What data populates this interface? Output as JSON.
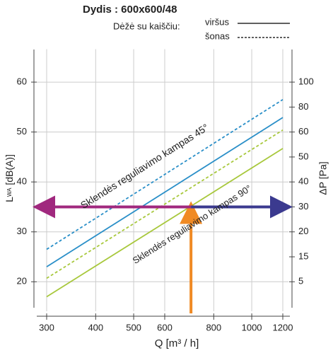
{
  "chart_data": {
    "type": "line",
    "title": "Dydis : 600x600/48",
    "subtitle": "Dėžė su kaiščiu:",
    "legend": [
      {
        "name": "viršus",
        "dashed": false
      },
      {
        "name": "šonas",
        "dashed": true
      }
    ],
    "xlabel": "Q [m³ / h]",
    "ylabel": "L",
    "ylabel_sub": "WA",
    "ylabel_rest": " [dB(A)]",
    "y2label": "ΔP [Pa]",
    "xscale": "log",
    "xlim": [
      300,
      1200
    ],
    "xticks": [
      300,
      400,
      500,
      600,
      800,
      1000,
      1200
    ],
    "ylim": [
      14.8,
      66.6
    ],
    "yticks": [
      20,
      30,
      40,
      50,
      60
    ],
    "y2scale": "point",
    "y2ticks": [
      5,
      15,
      20,
      30,
      40,
      50,
      60,
      80,
      100
    ],
    "grid": true,
    "x": [
      300,
      1200
    ],
    "series": [
      {
        "color": "#2a8fc8",
        "dashed": true,
        "values": [
          26.5,
          56.5
        ]
      },
      {
        "color": "#2a8fc8",
        "dashed": false,
        "values": [
          23.0,
          52.9
        ]
      },
      {
        "color": "#a8c83c",
        "dashed": true,
        "values": [
          20.7,
          50.4
        ]
      },
      {
        "color": "#a8c83c",
        "dashed": false,
        "values": [
          17.0,
          46.7
        ]
      }
    ],
    "operating_point": {
      "x": 700,
      "y": 35
    },
    "annotations": [
      "Sklendės reguliavimo kampas 45°",
      "Sklendės reguliavimo kampas 90°"
    ]
  }
}
